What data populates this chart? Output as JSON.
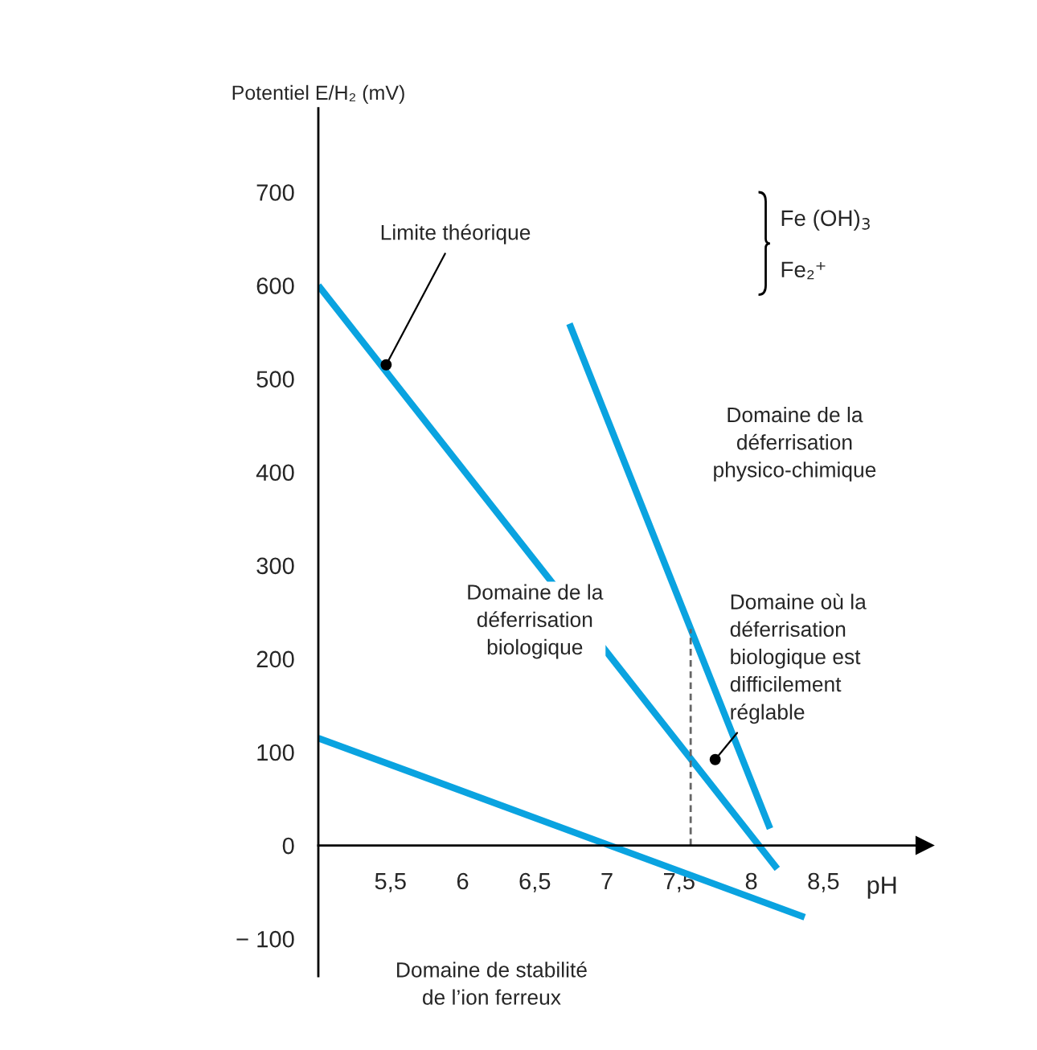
{
  "chart_data": {
    "type": "line",
    "xlabel": "pH",
    "ylabel": "Potentiel E/H₂ (mV)",
    "xlim": [
      5,
      9.2
    ],
    "ylim": [
      -140,
      790
    ],
    "xticks": [
      {
        "value": 5.5,
        "label": "5,5"
      },
      6,
      {
        "value": 6.5,
        "label": "6,5"
      },
      7,
      {
        "value": 7.5,
        "label": "7,5"
      },
      8,
      {
        "value": 8.5,
        "label": "8,5"
      }
    ],
    "yticks": [
      {
        "value": -100,
        "label": "− 100"
      },
      0,
      100,
      200,
      300,
      400,
      500,
      600,
      700
    ],
    "grid": false,
    "marker": "none",
    "series": [
      {
        "color": "#0aa3e0",
        "x": [
          5,
          8.18
        ],
        "values": [
          600,
          -25
        ]
      },
      {
        "color": "#0aa3e0",
        "x": [
          5,
          8.37
        ],
        "values": [
          115,
          -77
        ]
      },
      {
        "color": "#0aa3e0",
        "x": [
          6.74,
          8.13
        ],
        "values": [
          559,
          18
        ]
      },
      {
        "color": "#666666",
        "line_style": "dashed",
        "x": [
          7.58,
          7.58
        ],
        "values": [
          0,
          232
        ]
      }
    ],
    "annotations": [
      {
        "text": "Limite théorique",
        "x": 5.47,
        "y": 515
      },
      {
        "text": "Domaine où la\ndéferrisation\nbiologique est\ndifficilement\nréglable",
        "x": 7.75,
        "y": 92
      },
      "Fe (OH)$_{3}$",
      "Fe₂⁺",
      "Domaine de la\ndéferrisation\nphysico-chimique",
      "Domaine de la\ndéferrisation\nbiologique",
      "Domaine de stabilité\nde l’ion ferreux"
    ]
  }
}
